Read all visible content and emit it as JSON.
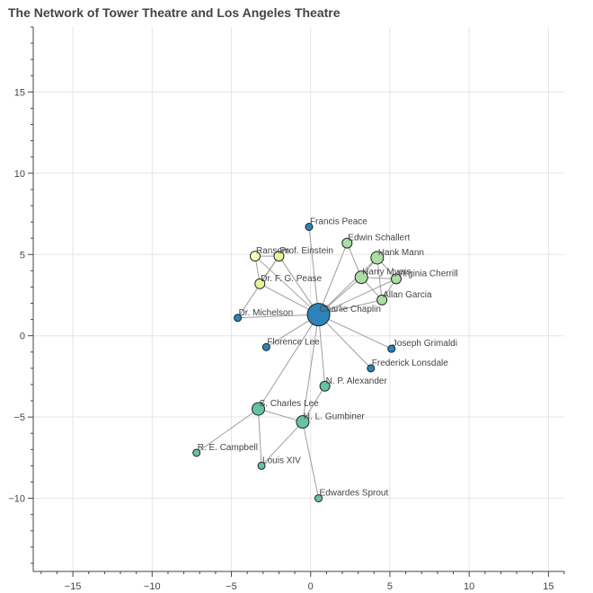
{
  "chart_data": {
    "type": "scatter",
    "title": "The Network of Tower Theatre and Los Angeles Theatre",
    "xlim": [
      -17.5,
      16
    ],
    "ylim": [
      -14.5,
      19
    ],
    "x_ticks": [
      -15,
      -10,
      -5,
      0,
      5,
      10,
      15
    ],
    "y_ticks": [
      -10,
      -5,
      0,
      5,
      10,
      15
    ],
    "grid": true,
    "nodes": [
      {
        "name": "Charlie Chaplin",
        "x": 0.5,
        "y": 1.3,
        "size": "large",
        "color": "#2b83ba"
      },
      {
        "name": "Francis Peace",
        "x": -0.1,
        "y": 6.7,
        "size": "small",
        "color": "#2b83ba"
      },
      {
        "name": "Edwin Schallert",
        "x": 2.3,
        "y": 5.7,
        "size": "medium",
        "color": "#abdda4"
      },
      {
        "name": "Hank Mann",
        "x": 4.2,
        "y": 4.8,
        "size": "mediumlarge",
        "color": "#abdda4"
      },
      {
        "name": "Harry Myers",
        "x": 3.2,
        "y": 3.6,
        "size": "mediumlarge",
        "color": "#abdda4"
      },
      {
        "name": "Virginia Cherrill",
        "x": 5.4,
        "y": 3.5,
        "size": "medium",
        "color": "#abdda4"
      },
      {
        "name": "Allan Garcia",
        "x": 4.5,
        "y": 2.2,
        "size": "medium",
        "color": "#abdda4"
      },
      {
        "name": "Ransom",
        "x": -3.5,
        "y": 4.9,
        "size": "medium",
        "color": "#ffffbf"
      },
      {
        "name": "Prof. Einstein",
        "x": -2.0,
        "y": 4.9,
        "size": "medium",
        "color": "#e6f598"
      },
      {
        "name": "Dr. F. G. Pease",
        "x": -3.2,
        "y": 3.2,
        "size": "medium",
        "color": "#e6f598"
      },
      {
        "name": "Dr. Michelson",
        "x": -4.6,
        "y": 1.1,
        "size": "small",
        "color": "#2b83ba"
      },
      {
        "name": "Florence Lee",
        "x": -2.8,
        "y": -0.7,
        "size": "small",
        "color": "#2b83ba"
      },
      {
        "name": "Joseph Grimaldi",
        "x": 5.1,
        "y": -0.8,
        "size": "small",
        "color": "#2b83ba"
      },
      {
        "name": "Frederick Lonsdale",
        "x": 3.8,
        "y": -2.0,
        "size": "small",
        "color": "#2b83ba"
      },
      {
        "name": "N. P. Alexander",
        "x": 0.9,
        "y": -3.1,
        "size": "medium",
        "color": "#66c2a5"
      },
      {
        "name": "S. Charles Lee",
        "x": -3.3,
        "y": -4.5,
        "size": "mediumlarge",
        "color": "#66c2a5"
      },
      {
        "name": "H. L. Gumbiner",
        "x": -0.5,
        "y": -5.3,
        "size": "mediumlarge",
        "color": "#66c2a5"
      },
      {
        "name": "R. E. Campbell",
        "x": -7.2,
        "y": -7.2,
        "size": "small",
        "color": "#66c2a5"
      },
      {
        "name": "Louis XIV",
        "x": -3.1,
        "y": -8.0,
        "size": "small",
        "color": "#66c2a5"
      },
      {
        "name": "Edwardes Sprout",
        "x": 0.5,
        "y": -10.0,
        "size": "small",
        "color": "#66c2a5"
      }
    ],
    "edges": [
      [
        "Charlie Chaplin",
        "Francis Peace"
      ],
      [
        "Charlie Chaplin",
        "Edwin Schallert"
      ],
      [
        "Charlie Chaplin",
        "Hank Mann"
      ],
      [
        "Charlie Chaplin",
        "Harry Myers"
      ],
      [
        "Charlie Chaplin",
        "Virginia Cherrill"
      ],
      [
        "Charlie Chaplin",
        "Allan Garcia"
      ],
      [
        "Charlie Chaplin",
        "Ransom"
      ],
      [
        "Charlie Chaplin",
        "Prof. Einstein"
      ],
      [
        "Charlie Chaplin",
        "Dr. F. G. Pease"
      ],
      [
        "Charlie Chaplin",
        "Dr. Michelson"
      ],
      [
        "Charlie Chaplin",
        "Florence Lee"
      ],
      [
        "Charlie Chaplin",
        "Joseph Grimaldi"
      ],
      [
        "Charlie Chaplin",
        "Frederick Lonsdale"
      ],
      [
        "Charlie Chaplin",
        "N. P. Alexander"
      ],
      [
        "Charlie Chaplin",
        "S. Charles Lee"
      ],
      [
        "Charlie Chaplin",
        "H. L. Gumbiner"
      ],
      [
        "Edwin Schallert",
        "Harry Myers"
      ],
      [
        "Hank Mann",
        "Harry Myers"
      ],
      [
        "Harry Myers",
        "Virginia Cherrill"
      ],
      [
        "Harry Myers",
        "Allan Garcia"
      ],
      [
        "Hank Mann",
        "Virginia Cherrill"
      ],
      [
        "Hank Mann",
        "Allan Garcia"
      ],
      [
        "Virginia Cherrill",
        "Allan Garcia"
      ],
      [
        "Ransom",
        "Prof. Einstein"
      ],
      [
        "Ransom",
        "Dr. F. G. Pease"
      ],
      [
        "Prof. Einstein",
        "Dr. F. G. Pease"
      ],
      [
        "Dr. Michelson",
        "Prof. Einstein"
      ],
      [
        "S. Charles Lee",
        "H. L. Gumbiner"
      ],
      [
        "S. Charles Lee",
        "R. E. Campbell"
      ],
      [
        "S. Charles Lee",
        "Louis XIV"
      ],
      [
        "H. L. Gumbiner",
        "Louis XIV"
      ],
      [
        "H. L. Gumbiner",
        "Edwardes Sprout"
      ],
      [
        "H. L. Gumbiner",
        "N. P. Alexander"
      ]
    ]
  }
}
